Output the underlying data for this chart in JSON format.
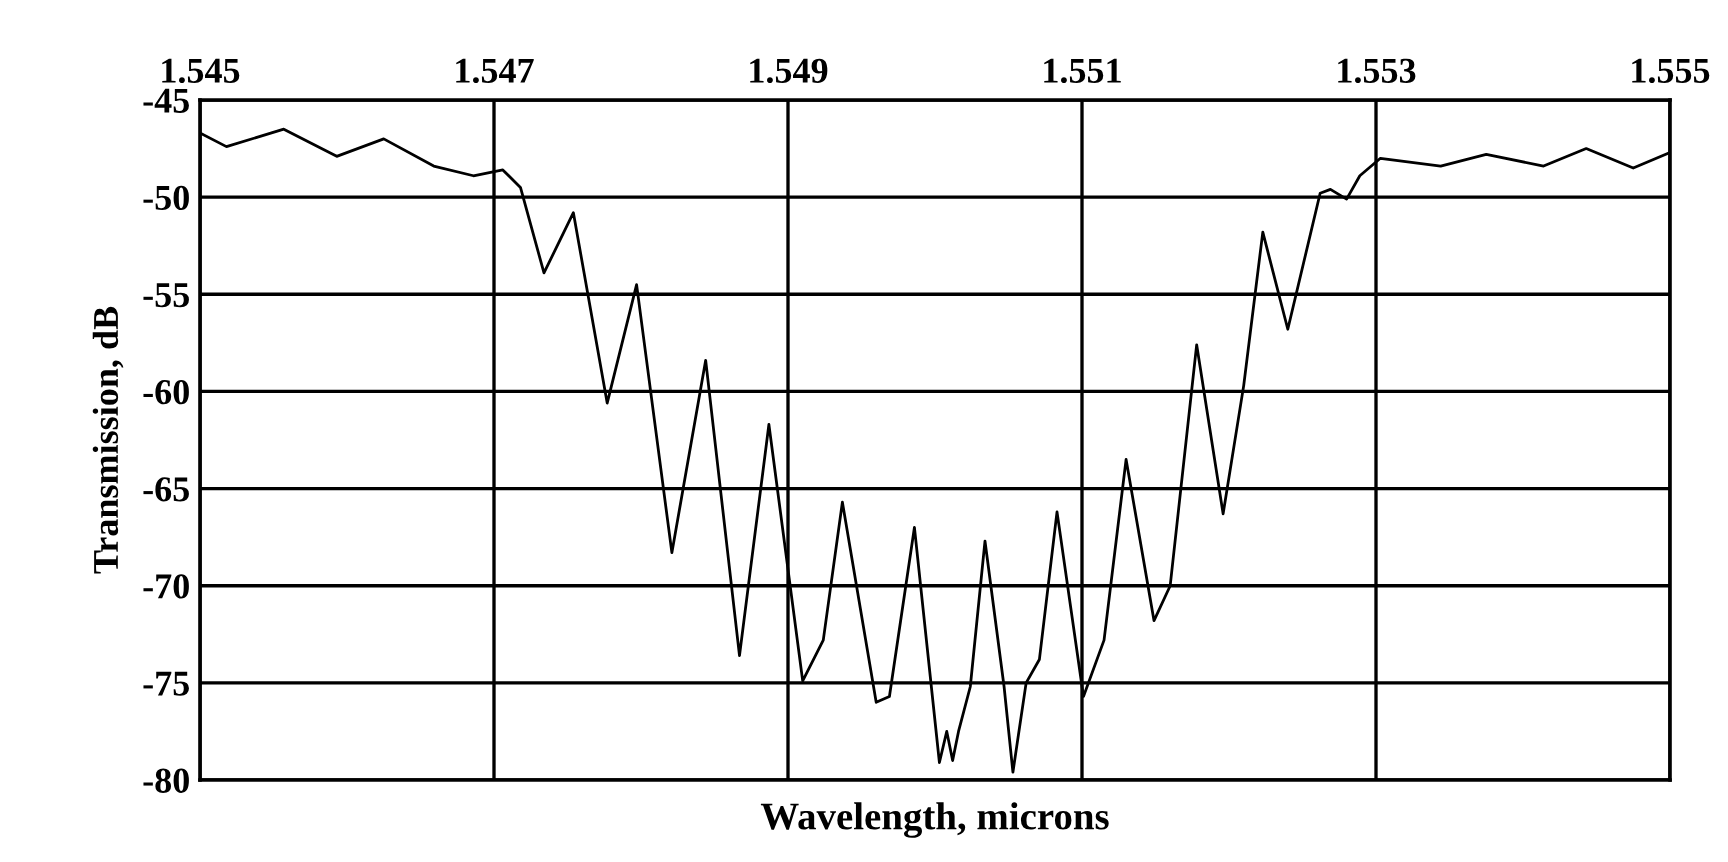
{
  "chart_data": {
    "type": "line",
    "xlabel": "Wavelength, microns",
    "ylabel": "Transmission, dB",
    "x": [
      1.545,
      1.54518,
      1.54557,
      1.54593,
      1.54625,
      1.54659,
      1.54686,
      1.54706,
      1.54718,
      1.54734,
      1.54754,
      1.54777,
      1.54797,
      1.54821,
      1.54844,
      1.54867,
      1.54887,
      1.5491,
      1.54924,
      1.54937,
      1.5496,
      1.54969,
      1.54986,
      1.55003,
      1.55008,
      1.55012,
      1.55016,
      1.55024,
      1.55034,
      1.55047,
      1.55053,
      1.55062,
      1.55071,
      1.55083,
      1.55101,
      1.55115,
      1.5513,
      1.55149,
      1.5516,
      1.55178,
      1.55196,
      1.5521,
      1.55223,
      1.5524,
      1.55262,
      1.55269,
      1.5528,
      1.55289,
      1.55303,
      1.55344,
      1.55375,
      1.55414,
      1.55443,
      1.55475,
      1.555
    ],
    "series": [
      {
        "color": "#000000",
        "values": [
          -46.7,
          -47.4,
          -46.5,
          -47.9,
          -47.0,
          -48.4,
          -48.9,
          -48.6,
          -49.5,
          -53.9,
          -50.8,
          -60.6,
          -54.5,
          -68.3,
          -58.4,
          -73.6,
          -61.7,
          -74.9,
          -72.8,
          -65.7,
          -76.0,
          -75.7,
          -67.0,
          -79.1,
          -77.5,
          -79.0,
          -77.5,
          -75.2,
          -67.7,
          -75.2,
          -79.6,
          -75.0,
          -73.8,
          -66.2,
          -75.7,
          -72.8,
          -63.5,
          -71.8,
          -70.0,
          -57.6,
          -66.3,
          -59.7,
          -51.8,
          -56.8,
          -49.8,
          -49.6,
          -50.1,
          -48.9,
          -48.0,
          -48.4,
          -47.8,
          -48.4,
          -47.5,
          -48.5,
          -47.7
        ]
      }
    ],
    "xlim": [
      1.545,
      1.555
    ],
    "xticks": [
      {
        "value": 1.545,
        "label": "1.545"
      },
      {
        "value": 1.547,
        "label": "1.547"
      },
      {
        "value": 1.549,
        "label": "1.549"
      },
      {
        "value": 1.551,
        "label": "1.551"
      },
      {
        "value": 1.553,
        "label": "1.553"
      },
      {
        "value": 1.555,
        "label": "1.555"
      }
    ],
    "ylim": [
      -80,
      -45
    ],
    "yticks": [
      -45,
      -50,
      -55,
      -60,
      -65,
      -70,
      -75,
      -80
    ],
    "grid": true,
    "line_style": "solid",
    "marker": "none"
  }
}
